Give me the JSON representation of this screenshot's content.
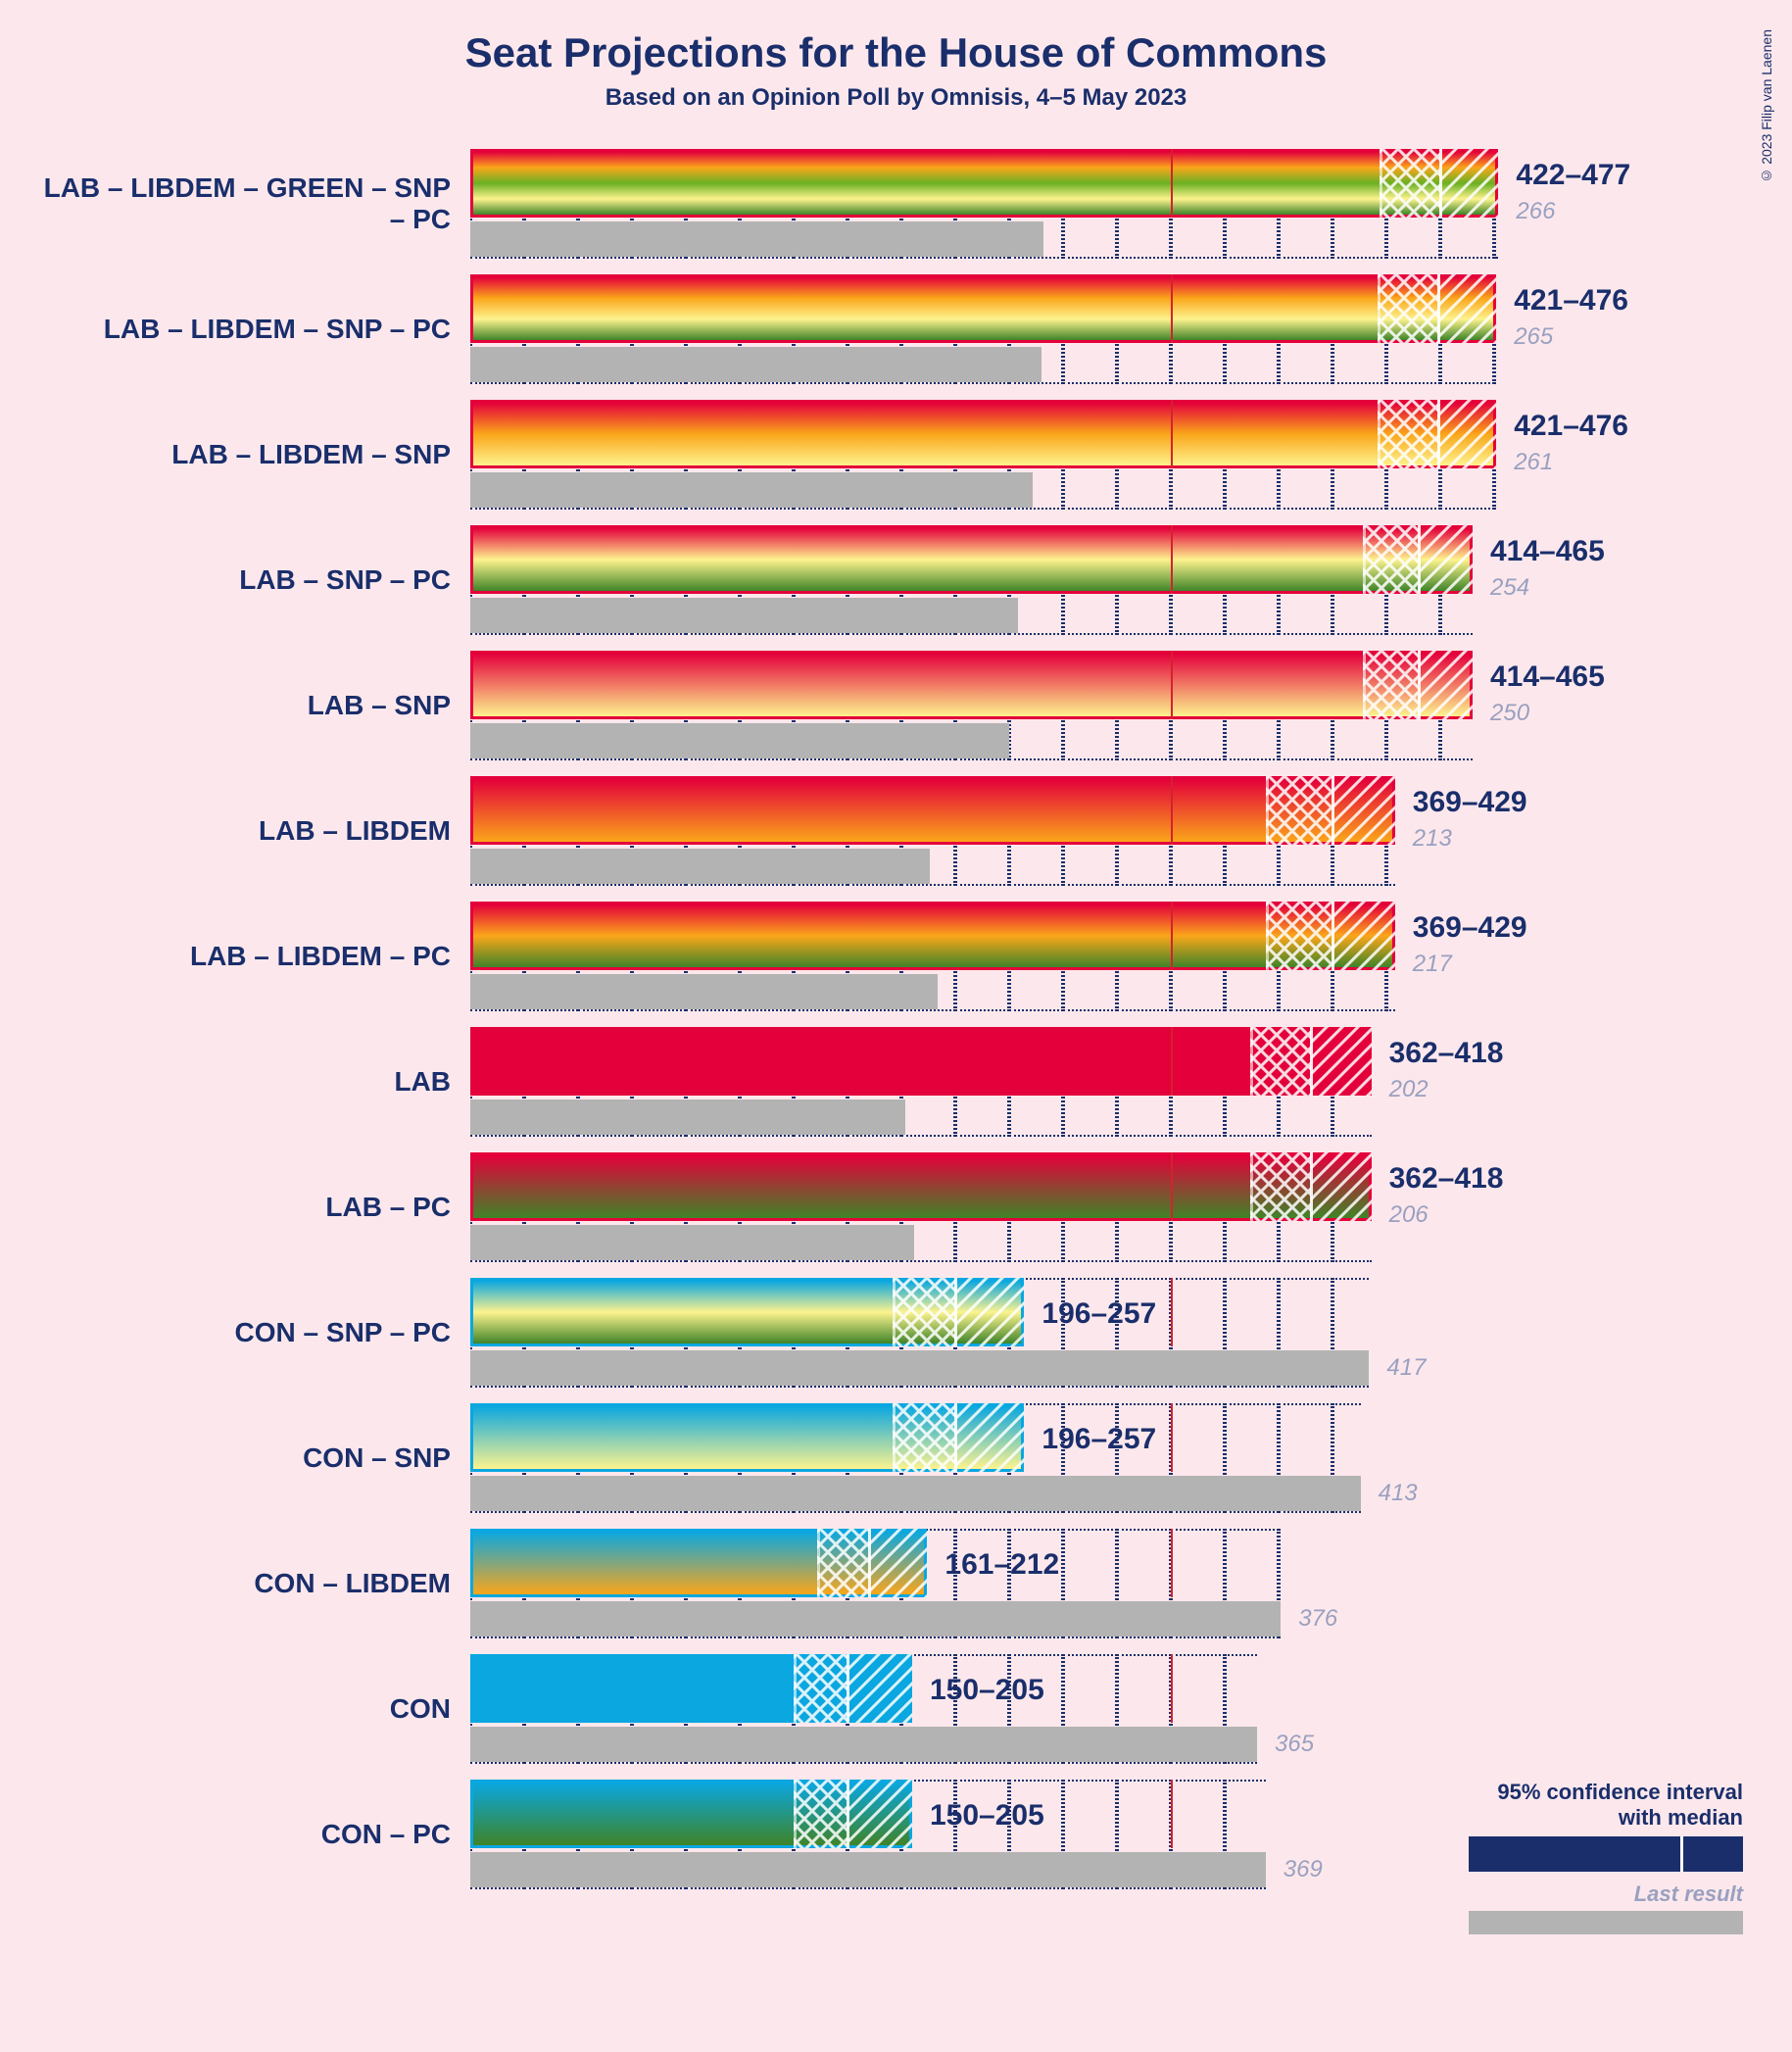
{
  "title": "Seat Projections for the House of Commons",
  "subtitle": "Based on an Opinion Poll by Omnisis, 4–5 May 2023",
  "copyright": "© 2023 Filip van Laenen",
  "background_color": "#fce8ec",
  "text_color": "#1a2e6b",
  "last_result_color": "#b3b3b3",
  "majority_threshold": 325,
  "majority_line_color": "#d4212f",
  "title_fontsize": 42,
  "subtitle_fontsize": 24,
  "label_fontsize": 28,
  "range_fontsize": 30,
  "last_fontsize": 24,
  "axis": {
    "min": 0,
    "max": 500,
    "tick_step": 25,
    "grid_color": "#1a2e6b"
  },
  "party_colors": {
    "LAB": "#e4003b",
    "CON": "#0aa7e0",
    "LIBDEM": "#faa61a",
    "GREEN": "#6ab023",
    "SNP": "#fdf38e",
    "PC": "#3f8428"
  },
  "legend": {
    "ci_text1": "95% confidence interval",
    "ci_text2": "with median",
    "last_text": "Last result"
  },
  "rows": [
    {
      "label": "LAB – LIBDEM – GREEN – SNP – PC",
      "parties": [
        "LAB",
        "LIBDEM",
        "GREEN",
        "SNP",
        "PC"
      ],
      "low": 422,
      "median": 450,
      "high": 477,
      "last": 266
    },
    {
      "label": "LAB – LIBDEM – SNP – PC",
      "parties": [
        "LAB",
        "LIBDEM",
        "SNP",
        "PC"
      ],
      "low": 421,
      "median": 449,
      "high": 476,
      "last": 265
    },
    {
      "label": "LAB – LIBDEM – SNP",
      "parties": [
        "LAB",
        "LIBDEM",
        "SNP"
      ],
      "low": 421,
      "median": 449,
      "high": 476,
      "last": 261
    },
    {
      "label": "LAB – SNP – PC",
      "parties": [
        "LAB",
        "SNP",
        "PC"
      ],
      "low": 414,
      "median": 440,
      "high": 465,
      "last": 254
    },
    {
      "label": "LAB – SNP",
      "parties": [
        "LAB",
        "SNP"
      ],
      "low": 414,
      "median": 440,
      "high": 465,
      "last": 250
    },
    {
      "label": "LAB – LIBDEM",
      "parties": [
        "LAB",
        "LIBDEM"
      ],
      "low": 369,
      "median": 400,
      "high": 429,
      "last": 213
    },
    {
      "label": "LAB – LIBDEM – PC",
      "parties": [
        "LAB",
        "LIBDEM",
        "PC"
      ],
      "low": 369,
      "median": 400,
      "high": 429,
      "last": 217
    },
    {
      "label": "LAB",
      "parties": [
        "LAB"
      ],
      "low": 362,
      "median": 390,
      "high": 418,
      "last": 202
    },
    {
      "label": "LAB – PC",
      "parties": [
        "LAB",
        "PC"
      ],
      "low": 362,
      "median": 390,
      "high": 418,
      "last": 206
    },
    {
      "label": "CON – SNP – PC",
      "parties": [
        "CON",
        "SNP",
        "PC"
      ],
      "low": 196,
      "median": 225,
      "high": 257,
      "last": 417
    },
    {
      "label": "CON – SNP",
      "parties": [
        "CON",
        "SNP"
      ],
      "low": 196,
      "median": 225,
      "high": 257,
      "last": 413
    },
    {
      "label": "CON – LIBDEM",
      "parties": [
        "CON",
        "LIBDEM"
      ],
      "low": 161,
      "median": 185,
      "high": 212,
      "last": 376
    },
    {
      "label": "CON",
      "parties": [
        "CON"
      ],
      "low": 150,
      "median": 175,
      "high": 205,
      "last": 365
    },
    {
      "label": "CON – PC",
      "parties": [
        "CON",
        "PC"
      ],
      "low": 150,
      "median": 175,
      "high": 205,
      "last": 369
    }
  ]
}
